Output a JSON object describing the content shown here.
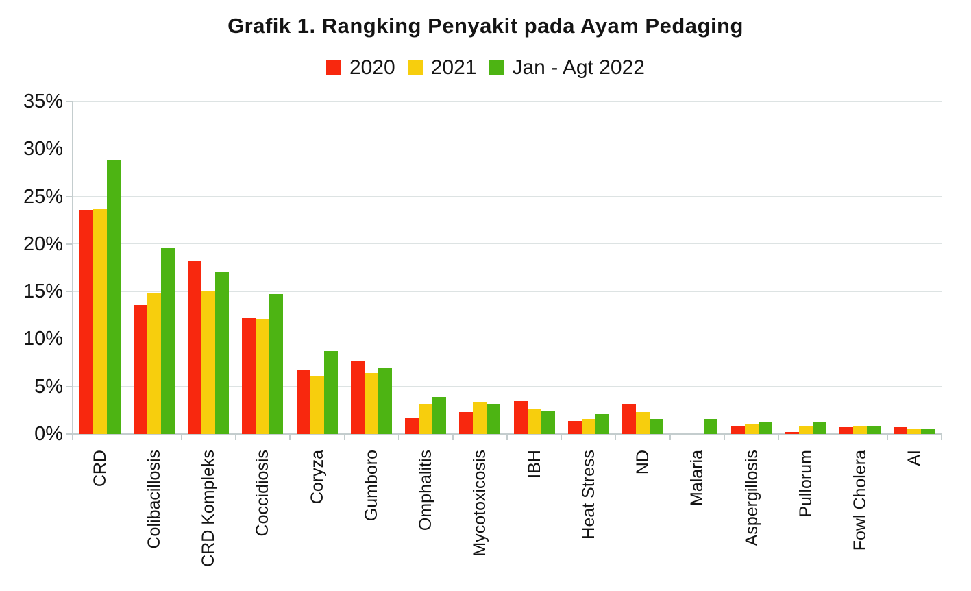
{
  "title": "Grafik 1. Rangking Penyakit pada Ayam Pedaging",
  "legend": [
    {
      "label": "2020",
      "color": "#F8280E"
    },
    {
      "label": "2021",
      "color": "#F7CE0D"
    },
    {
      "label": "Jan - Agt 2022",
      "color": "#4DB413"
    }
  ],
  "chart_data": {
    "type": "bar",
    "title": "Grafik 1. Rangking Penyakit pada Ayam Pedaging",
    "categories": [
      "CRD",
      "Colibacillosis",
      "CRD Kompleks",
      "Coccidiosis",
      "Coryza",
      "Gumboro",
      "Omphalitis",
      "Mycotoxicosis",
      "IBH",
      "Heat Stress",
      "ND",
      "Malaria",
      "Aspergillosis",
      "Pullorum",
      "Fowl Cholera",
      "AI"
    ],
    "series": [
      {
        "name": "2020",
        "color": "#F8280E",
        "values": [
          23.5,
          13.6,
          18.2,
          12.2,
          6.7,
          7.7,
          1.7,
          2.3,
          3.5,
          1.4,
          3.2,
          0,
          0.9,
          0.2,
          0.7,
          0.7
        ]
      },
      {
        "name": "2021",
        "color": "#F7CE0D",
        "values": [
          23.7,
          14.9,
          15.0,
          12.1,
          6.1,
          6.4,
          3.2,
          3.3,
          2.7,
          1.6,
          2.3,
          0,
          1.1,
          0.9,
          0.8,
          0.6
        ]
      },
      {
        "name": "Jan - Agt 2022",
        "color": "#4DB413",
        "values": [
          28.9,
          19.6,
          17.0,
          14.7,
          8.7,
          6.9,
          3.9,
          3.2,
          2.4,
          2.1,
          1.6,
          1.6,
          1.2,
          1.2,
          0.8,
          0.6
        ]
      }
    ],
    "xlabel": "",
    "ylabel": "",
    "ylim": [
      0,
      35
    ],
    "yticks": [
      "0%",
      "5%",
      "10%",
      "15%",
      "20%",
      "25%",
      "30%",
      "35%"
    ],
    "grid": true,
    "legend_position": "top",
    "value_unit": "percent"
  }
}
